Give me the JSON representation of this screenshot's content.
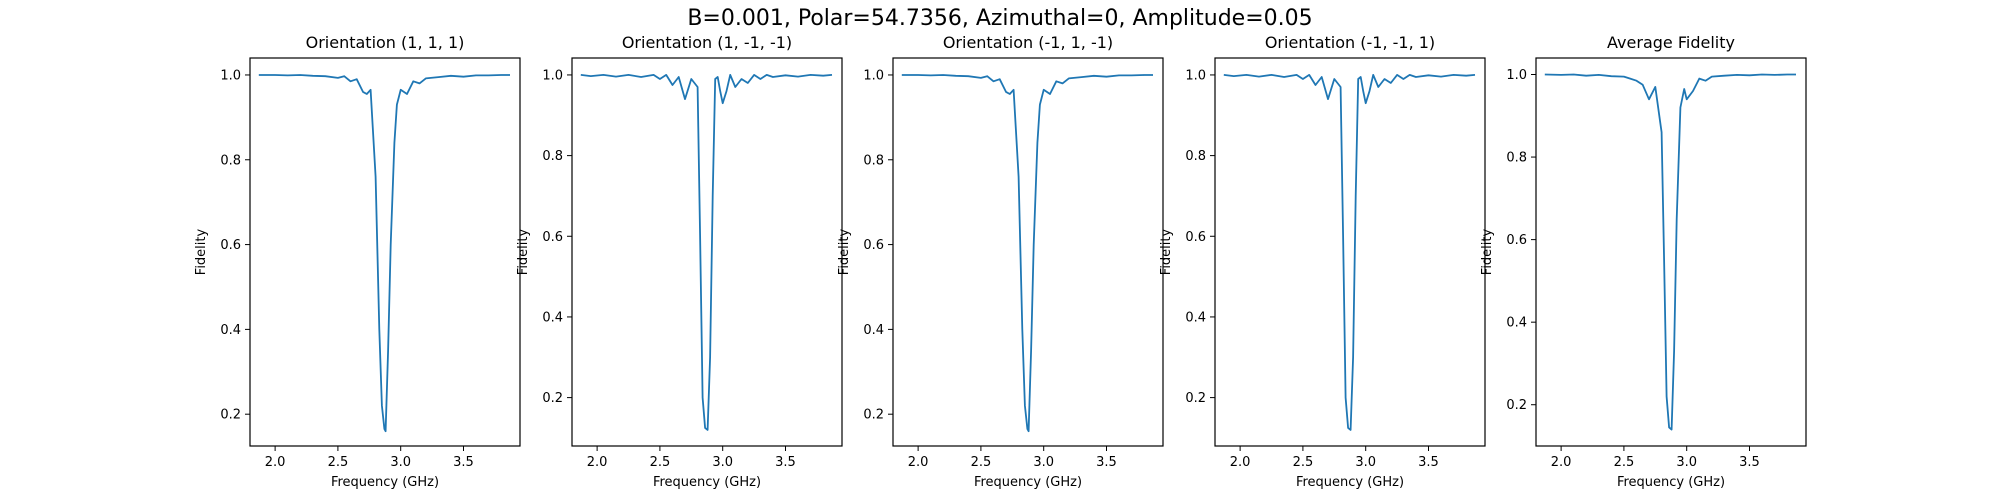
{
  "figure": {
    "suptitle": "B=0.001, Polar=54.7356, Azimuthal=0, Amplitude=0.05"
  },
  "colors": {
    "line": "#1f77b4",
    "axes": "#000000"
  },
  "chart_data": [
    {
      "type": "line",
      "title": "Orientation (1, 1, 1)",
      "xlabel": "Frequency (GHz)",
      "ylabel": "Fidelity",
      "xlim": [
        1.8,
        3.95
      ],
      "ylim": [
        0.125,
        1.04
      ],
      "xticks": [
        2.0,
        2.5,
        3.0,
        3.5
      ],
      "xtick_labels": [
        "2.0",
        "2.5",
        "3.0",
        "3.5"
      ],
      "yticks": [
        0.2,
        0.4,
        0.6,
        0.8,
        1.0
      ],
      "ytick_labels": [
        "0.2",
        "0.4",
        "0.6",
        "0.8",
        "1.0"
      ],
      "grid": false,
      "series": [
        {
          "x": [
            1.87,
            2.0,
            2.1,
            2.2,
            2.3,
            2.4,
            2.5,
            2.55,
            2.6,
            2.65,
            2.7,
            2.73,
            2.76,
            2.8,
            2.83,
            2.85,
            2.87,
            2.88,
            2.9,
            2.92,
            2.95,
            2.97,
            3.0,
            3.05,
            3.1,
            3.15,
            3.2,
            3.3,
            3.4,
            3.5,
            3.6,
            3.7,
            3.8,
            3.87
          ],
          "y": [
            1.0,
            1.0,
            0.999,
            1.0,
            0.998,
            0.997,
            0.993,
            0.997,
            0.985,
            0.99,
            0.96,
            0.955,
            0.965,
            0.76,
            0.4,
            0.22,
            0.165,
            0.16,
            0.35,
            0.6,
            0.84,
            0.93,
            0.965,
            0.955,
            0.985,
            0.98,
            0.992,
            0.995,
            0.998,
            0.996,
            0.999,
            0.999,
            1.0,
            1.0
          ]
        }
      ]
    },
    {
      "type": "line",
      "title": "Orientation (1, -1, -1)",
      "xlabel": "Frequency (GHz)",
      "ylabel": "Fidelity",
      "xlim": [
        1.8,
        3.95
      ],
      "ylim": [
        0.08,
        1.042
      ],
      "xticks": [
        2.0,
        2.5,
        3.0,
        3.5
      ],
      "xtick_labels": [
        "2.0",
        "2.5",
        "3.0",
        "3.5"
      ],
      "yticks": [
        0.2,
        0.4,
        0.6,
        0.8,
        1.0
      ],
      "ytick_labels": [
        "0.2",
        "0.4",
        "0.6",
        "0.8",
        "1.0"
      ],
      "grid": false,
      "series": [
        {
          "x": [
            1.87,
            1.95,
            2.05,
            2.15,
            2.25,
            2.35,
            2.45,
            2.5,
            2.55,
            2.6,
            2.65,
            2.7,
            2.75,
            2.8,
            2.82,
            2.84,
            2.86,
            2.88,
            2.9,
            2.92,
            2.94,
            2.96,
            2.98,
            3.0,
            3.03,
            3.06,
            3.1,
            3.15,
            3.2,
            3.25,
            3.3,
            3.35,
            3.4,
            3.5,
            3.6,
            3.7,
            3.8,
            3.87
          ],
          "y": [
            1.0,
            0.997,
            1.0,
            0.996,
            1.0,
            0.995,
            1.0,
            0.99,
            1.0,
            0.975,
            0.995,
            0.94,
            0.99,
            0.97,
            0.6,
            0.2,
            0.125,
            0.12,
            0.3,
            0.7,
            0.99,
            0.995,
            0.96,
            0.93,
            0.96,
            1.0,
            0.97,
            0.99,
            0.98,
            1.0,
            0.99,
            1.0,
            0.995,
            0.999,
            0.996,
            1.0,
            0.998,
            1.0
          ]
        }
      ]
    },
    {
      "type": "line",
      "title": "Orientation (-1, 1, -1)",
      "xlabel": "Frequency (GHz)",
      "ylabel": "Fidelity",
      "xlim": [
        1.8,
        3.95
      ],
      "ylim": [
        0.125,
        1.04
      ],
      "xticks": [
        2.0,
        2.5,
        3.0,
        3.5
      ],
      "xtick_labels": [
        "2.0",
        "2.5",
        "3.0",
        "3.5"
      ],
      "yticks": [
        0.2,
        0.4,
        0.6,
        0.8,
        1.0
      ],
      "ytick_labels": [
        "0.2",
        "0.4",
        "0.6",
        "0.8",
        "1.0"
      ],
      "grid": false,
      "series": [
        {
          "x": [
            1.87,
            2.0,
            2.1,
            2.2,
            2.3,
            2.4,
            2.5,
            2.55,
            2.6,
            2.65,
            2.7,
            2.73,
            2.76,
            2.8,
            2.83,
            2.85,
            2.87,
            2.88,
            2.9,
            2.92,
            2.95,
            2.97,
            3.0,
            3.05,
            3.1,
            3.15,
            3.2,
            3.3,
            3.4,
            3.5,
            3.6,
            3.7,
            3.8,
            3.87
          ],
          "y": [
            1.0,
            1.0,
            0.999,
            1.0,
            0.998,
            0.997,
            0.993,
            0.997,
            0.985,
            0.99,
            0.96,
            0.955,
            0.965,
            0.76,
            0.4,
            0.22,
            0.165,
            0.16,
            0.35,
            0.6,
            0.84,
            0.93,
            0.965,
            0.955,
            0.985,
            0.98,
            0.992,
            0.995,
            0.998,
            0.996,
            0.999,
            0.999,
            1.0,
            1.0
          ]
        }
      ]
    },
    {
      "type": "line",
      "title": "Orientation (-1, -1, 1)",
      "xlabel": "Frequency (GHz)",
      "ylabel": "Fidelity",
      "xlim": [
        1.8,
        3.95
      ],
      "ylim": [
        0.08,
        1.042
      ],
      "xticks": [
        2.0,
        2.5,
        3.0,
        3.5
      ],
      "xtick_labels": [
        "2.0",
        "2.5",
        "3.0",
        "3.5"
      ],
      "yticks": [
        0.2,
        0.4,
        0.6,
        0.8,
        1.0
      ],
      "ytick_labels": [
        "0.2",
        "0.4",
        "0.6",
        "0.8",
        "1.0"
      ],
      "grid": false,
      "series": [
        {
          "x": [
            1.87,
            1.95,
            2.05,
            2.15,
            2.25,
            2.35,
            2.45,
            2.5,
            2.55,
            2.6,
            2.65,
            2.7,
            2.75,
            2.8,
            2.82,
            2.84,
            2.86,
            2.88,
            2.9,
            2.92,
            2.94,
            2.96,
            2.98,
            3.0,
            3.03,
            3.06,
            3.1,
            3.15,
            3.2,
            3.25,
            3.3,
            3.35,
            3.4,
            3.5,
            3.6,
            3.7,
            3.8,
            3.87
          ],
          "y": [
            1.0,
            0.997,
            1.0,
            0.996,
            1.0,
            0.995,
            1.0,
            0.99,
            1.0,
            0.975,
            0.995,
            0.94,
            0.99,
            0.97,
            0.6,
            0.2,
            0.125,
            0.12,
            0.3,
            0.7,
            0.99,
            0.995,
            0.96,
            0.93,
            0.96,
            1.0,
            0.97,
            0.99,
            0.98,
            1.0,
            0.99,
            1.0,
            0.995,
            0.999,
            0.996,
            1.0,
            0.998,
            1.0
          ]
        }
      ]
    },
    {
      "type": "line",
      "title": "Average Fidelity",
      "xlabel": "Frequency (GHz)",
      "ylabel": "Fidelity",
      "xlim": [
        1.8,
        3.95
      ],
      "ylim": [
        0.1,
        1.04
      ],
      "xticks": [
        2.0,
        2.5,
        3.0,
        3.5
      ],
      "xtick_labels": [
        "2.0",
        "2.5",
        "3.0",
        "3.5"
      ],
      "yticks": [
        0.2,
        0.4,
        0.6,
        0.8,
        1.0
      ],
      "ytick_labels": [
        "0.2",
        "0.4",
        "0.6",
        "0.8",
        "1.0"
      ],
      "grid": false,
      "series": [
        {
          "x": [
            1.87,
            2.0,
            2.1,
            2.2,
            2.3,
            2.4,
            2.5,
            2.55,
            2.6,
            2.65,
            2.7,
            2.75,
            2.8,
            2.82,
            2.84,
            2.86,
            2.88,
            2.9,
            2.92,
            2.95,
            2.98,
            3.0,
            3.05,
            3.1,
            3.15,
            3.2,
            3.3,
            3.4,
            3.5,
            3.6,
            3.7,
            3.8,
            3.87
          ],
          "y": [
            1.0,
            0.999,
            1.0,
            0.997,
            0.999,
            0.996,
            0.995,
            0.99,
            0.985,
            0.975,
            0.94,
            0.97,
            0.86,
            0.55,
            0.22,
            0.145,
            0.14,
            0.33,
            0.65,
            0.92,
            0.965,
            0.94,
            0.96,
            0.99,
            0.985,
            0.995,
            0.997,
            0.999,
            0.998,
            1.0,
            0.999,
            1.0,
            1.0
          ]
        }
      ]
    }
  ]
}
